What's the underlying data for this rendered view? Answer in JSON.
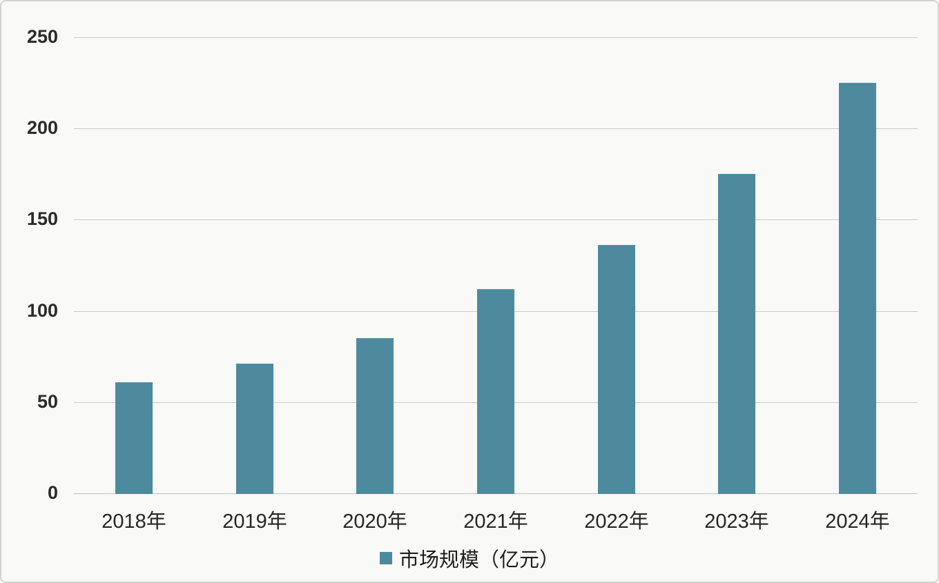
{
  "chart_data": {
    "type": "bar",
    "categories": [
      "2018年",
      "2019年",
      "2020年",
      "2021年",
      "2022年",
      "2023年",
      "2024年"
    ],
    "values": [
      61,
      71,
      85,
      112,
      136,
      175,
      225
    ],
    "series_name": "市场规模（亿元）",
    "legend": [
      "市场规模（亿元）"
    ],
    "legend_position": "bottom",
    "title": "",
    "xlabel": "",
    "ylabel": "",
    "ylim": [
      0,
      250
    ],
    "yticks": [
      0,
      50,
      100,
      150,
      200,
      250
    ],
    "grid": true,
    "bar_color": "#4d8a9e",
    "gridline_color": "#c9c9c9",
    "background_color": "#f9f9f7"
  }
}
